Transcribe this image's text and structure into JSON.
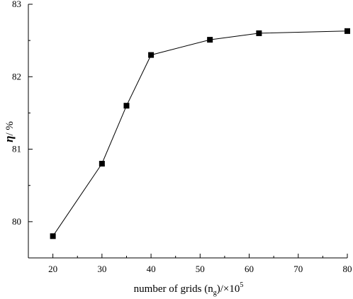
{
  "chart_data": {
    "type": "line",
    "title": "",
    "xlabel": {
      "prefix": "number of grids (n",
      "sub": "g",
      "mid": ")/×10",
      "sup": "5"
    },
    "ylabel": {
      "symbol": "η",
      "unit": "/ %"
    },
    "xlim": [
      15,
      80
    ],
    "ylim": [
      79.5,
      83
    ],
    "xticks": [
      20,
      30,
      40,
      50,
      60,
      70,
      80
    ],
    "yticks": [
      80,
      81,
      82,
      83
    ],
    "x_tick_labels": [
      "20",
      "30",
      "40",
      "50",
      "60",
      "70",
      "80"
    ],
    "y_tick_labels": [
      "80",
      "81",
      "82",
      "83"
    ],
    "grid": false,
    "legend": "none",
    "marker": "square",
    "series": [
      {
        "x": [
          20,
          30,
          35,
          40,
          52,
          62,
          80
        ],
        "y": [
          79.8,
          80.8,
          81.6,
          82.3,
          82.51,
          82.6,
          82.63
        ]
      }
    ]
  }
}
